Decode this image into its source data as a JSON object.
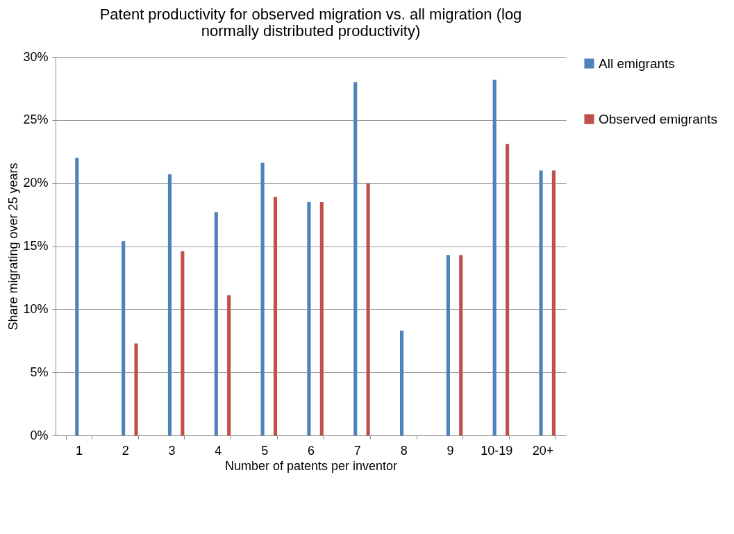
{
  "chart_data": {
    "type": "bar",
    "title": "Patent productivity for observed migration vs. all migration (log normally distributed productivity)",
    "xlabel": "Number of patents per inventor",
    "ylabel": "Share migrating over 25 years",
    "categories": [
      "1",
      "2",
      "3",
      "4",
      "5",
      "6",
      "7",
      "8",
      "9",
      "10-19",
      "20+"
    ],
    "series": [
      {
        "name": "All emigrants",
        "color": "#4f81bd",
        "values": [
          22.0,
          15.4,
          20.7,
          17.7,
          21.6,
          18.5,
          28.0,
          8.3,
          14.3,
          28.2,
          21.0
        ]
      },
      {
        "name": "Observed emigrants",
        "color": "#c0504d",
        "values": [
          null,
          7.3,
          14.6,
          11.1,
          18.9,
          18.5,
          20.0,
          null,
          14.3,
          23.1,
          21.0
        ]
      }
    ],
    "ylim": [
      0,
      30
    ],
    "yticks": [
      {
        "value": 0,
        "label": "0%"
      },
      {
        "value": 5,
        "label": "5%"
      },
      {
        "value": 10,
        "label": "10%"
      },
      {
        "value": 15,
        "label": "15%"
      },
      {
        "value": 20,
        "label": "20%"
      },
      {
        "value": 25,
        "label": "25%"
      },
      {
        "value": 30,
        "label": "30%"
      }
    ],
    "grid": "y",
    "legend": "right"
  }
}
